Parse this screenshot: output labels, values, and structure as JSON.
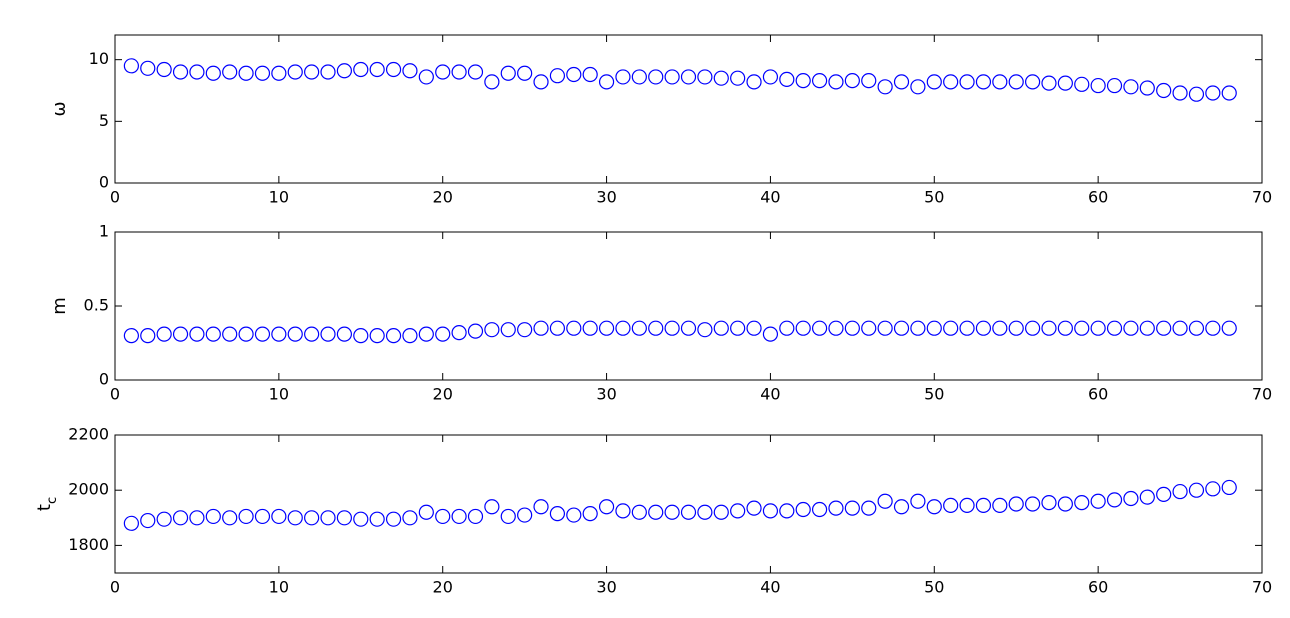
{
  "chart_data": [
    {
      "type": "scatter",
      "ylabel": "ω",
      "color": "#0000ff",
      "x": [
        1,
        2,
        3,
        4,
        5,
        6,
        7,
        8,
        9,
        10,
        11,
        12,
        13,
        14,
        15,
        16,
        17,
        18,
        19,
        20,
        21,
        22,
        23,
        24,
        25,
        26,
        27,
        28,
        29,
        30,
        31,
        32,
        33,
        34,
        35,
        36,
        37,
        38,
        39,
        40,
        41,
        42,
        43,
        44,
        45,
        46,
        47,
        48,
        49,
        50,
        51,
        52,
        53,
        54,
        55,
        56,
        57,
        58,
        59,
        60,
        61,
        62,
        63,
        64,
        65,
        66,
        67,
        68
      ],
      "values": [
        9.5,
        9.3,
        9.2,
        9.0,
        9.0,
        8.9,
        9.0,
        8.9,
        8.9,
        8.9,
        9.0,
        9.0,
        9.0,
        9.1,
        9.2,
        9.2,
        9.2,
        9.1,
        8.6,
        9.0,
        9.0,
        9.0,
        8.2,
        8.9,
        8.9,
        8.2,
        8.7,
        8.8,
        8.8,
        8.2,
        8.6,
        8.6,
        8.6,
        8.6,
        8.6,
        8.6,
        8.5,
        8.5,
        8.2,
        8.6,
        8.4,
        8.3,
        8.3,
        8.2,
        8.3,
        8.3,
        7.8,
        8.2,
        7.8,
        8.2,
        8.2,
        8.2,
        8.2,
        8.2,
        8.2,
        8.2,
        8.1,
        8.1,
        8.0,
        7.9,
        7.9,
        7.8,
        7.7,
        7.5,
        7.3,
        7.2,
        7.3,
        7.3
      ],
      "xlim": [
        0,
        70
      ],
      "xticks": [
        0,
        10,
        20,
        30,
        40,
        50,
        60,
        70
      ],
      "ylim": [
        0,
        12
      ],
      "yticks": [
        0,
        5,
        10
      ]
    },
    {
      "type": "scatter",
      "ylabel": "m",
      "color": "#0000ff",
      "x": [
        1,
        2,
        3,
        4,
        5,
        6,
        7,
        8,
        9,
        10,
        11,
        12,
        13,
        14,
        15,
        16,
        17,
        18,
        19,
        20,
        21,
        22,
        23,
        24,
        25,
        26,
        27,
        28,
        29,
        30,
        31,
        32,
        33,
        34,
        35,
        36,
        37,
        38,
        39,
        40,
        41,
        42,
        43,
        44,
        45,
        46,
        47,
        48,
        49,
        50,
        51,
        52,
        53,
        54,
        55,
        56,
        57,
        58,
        59,
        60,
        61,
        62,
        63,
        64,
        65,
        66,
        67,
        68
      ],
      "values": [
        0.3,
        0.3,
        0.31,
        0.31,
        0.31,
        0.31,
        0.31,
        0.31,
        0.31,
        0.31,
        0.31,
        0.31,
        0.31,
        0.31,
        0.3,
        0.3,
        0.3,
        0.3,
        0.31,
        0.31,
        0.32,
        0.33,
        0.34,
        0.34,
        0.34,
        0.35,
        0.35,
        0.35,
        0.35,
        0.35,
        0.35,
        0.35,
        0.35,
        0.35,
        0.35,
        0.34,
        0.35,
        0.35,
        0.35,
        0.31,
        0.35,
        0.35,
        0.35,
        0.35,
        0.35,
        0.35,
        0.35,
        0.35,
        0.35,
        0.35,
        0.35,
        0.35,
        0.35,
        0.35,
        0.35,
        0.35,
        0.35,
        0.35,
        0.35,
        0.35,
        0.35,
        0.35,
        0.35,
        0.35,
        0.35,
        0.35,
        0.35,
        0.35
      ],
      "xlim": [
        0,
        70
      ],
      "xticks": [
        0,
        10,
        20,
        30,
        40,
        50,
        60,
        70
      ],
      "ylim": [
        0,
        1
      ],
      "yticks": [
        0,
        0.5,
        1
      ]
    },
    {
      "type": "scatter",
      "ylabel": "t",
      "ylabel_subscript": "c",
      "color": "#0000ff",
      "x": [
        1,
        2,
        3,
        4,
        5,
        6,
        7,
        8,
        9,
        10,
        11,
        12,
        13,
        14,
        15,
        16,
        17,
        18,
        19,
        20,
        21,
        22,
        23,
        24,
        25,
        26,
        27,
        28,
        29,
        30,
        31,
        32,
        33,
        34,
        35,
        36,
        37,
        38,
        39,
        40,
        41,
        42,
        43,
        44,
        45,
        46,
        47,
        48,
        49,
        50,
        51,
        52,
        53,
        54,
        55,
        56,
        57,
        58,
        59,
        60,
        61,
        62,
        63,
        64,
        65,
        66,
        67,
        68
      ],
      "values": [
        1880,
        1890,
        1895,
        1900,
        1900,
        1905,
        1900,
        1905,
        1905,
        1905,
        1900,
        1900,
        1900,
        1900,
        1895,
        1895,
        1895,
        1900,
        1920,
        1905,
        1905,
        1905,
        1940,
        1905,
        1910,
        1940,
        1915,
        1910,
        1915,
        1940,
        1925,
        1920,
        1920,
        1920,
        1920,
        1920,
        1920,
        1925,
        1935,
        1925,
        1925,
        1930,
        1930,
        1935,
        1935,
        1935,
        1960,
        1940,
        1960,
        1940,
        1945,
        1945,
        1945,
        1945,
        1950,
        1950,
        1955,
        1950,
        1955,
        1960,
        1965,
        1970,
        1975,
        1985,
        1995,
        2000,
        2005,
        2010
      ],
      "xlim": [
        0,
        70
      ],
      "xticks": [
        0,
        10,
        20,
        30,
        40,
        50,
        60,
        70
      ],
      "ylim": [
        1700,
        2200
      ],
      "yticks": [
        1800,
        2000,
        2200
      ]
    }
  ]
}
